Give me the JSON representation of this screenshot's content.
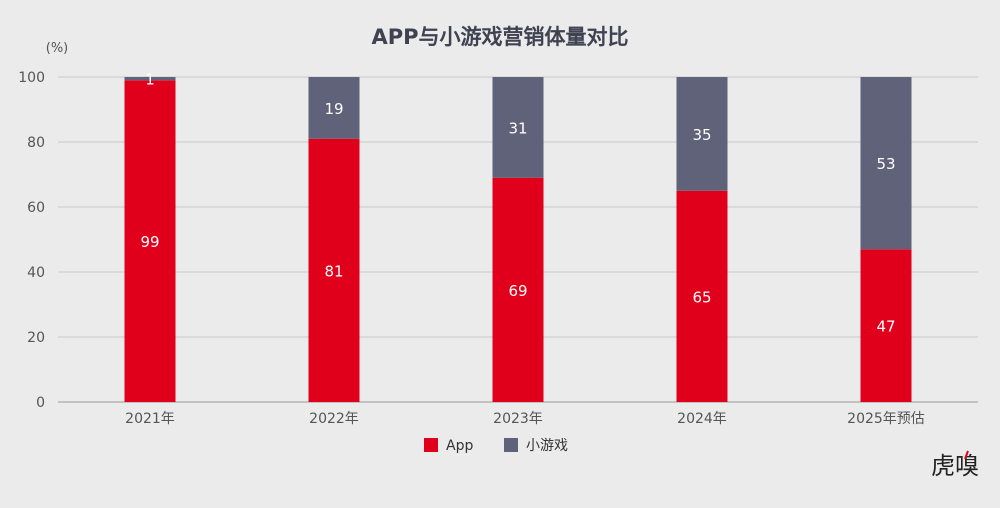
{
  "chart_data": {
    "type": "bar",
    "stacked": true,
    "title": "APP与小游戏营销体量对比",
    "unit_label": "(%)",
    "categories": [
      "2021年",
      "2022年",
      "2023年",
      "2024年",
      "2025年预估"
    ],
    "series": [
      {
        "name": "App",
        "values": [
          99,
          81,
          69,
          65,
          47
        ],
        "color": "#e0001b"
      },
      {
        "name": "小游戏",
        "values": [
          1,
          19,
          31,
          35,
          53
        ],
        "color": "#5f6278"
      }
    ],
    "ylim": [
      0,
      100
    ],
    "yticks": [
      0,
      20,
      40,
      60,
      80,
      100
    ],
    "grid": true,
    "legend_position": "bottom-center"
  },
  "watermark": {
    "text": "虎嗅",
    "accent_color": "#e0001b"
  }
}
